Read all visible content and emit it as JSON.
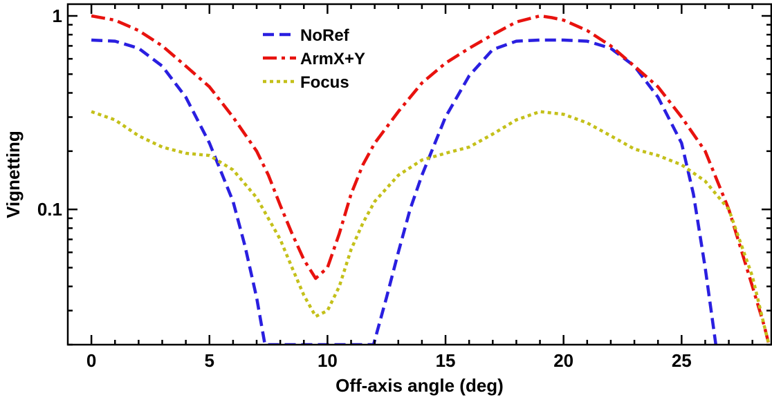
{
  "chart_data": {
    "type": "line",
    "title": "",
    "xlabel": "Off-axis angle (deg)",
    "ylabel": "Vignetting",
    "xlim": [
      -1,
      28.8
    ],
    "ylim": [
      0.02,
      1.15
    ],
    "yscale": "log",
    "x_ticks": [
      0,
      5,
      10,
      15,
      20,
      25
    ],
    "x_tick_labels": [
      "0",
      "5",
      "10",
      "15",
      "20",
      "25"
    ],
    "y_ticks": [
      0.1,
      1
    ],
    "y_tick_labels": [
      "0.1",
      "1"
    ],
    "grid": false,
    "legend_position": "top-center",
    "series": [
      {
        "name": "NoRef",
        "color": "#2a1fe0",
        "line_style": "dashed",
        "points": [
          [
            0,
            0.75
          ],
          [
            1,
            0.74
          ],
          [
            2,
            0.68
          ],
          [
            3,
            0.55
          ],
          [
            4,
            0.38
          ],
          [
            5,
            0.22
          ],
          [
            6,
            0.11
          ],
          [
            6.5,
            0.065
          ],
          [
            7,
            0.035
          ],
          [
            7.35,
            0.02
          ],
          [
            11.95,
            0.02
          ],
          [
            12.5,
            0.035
          ],
          [
            13,
            0.06
          ],
          [
            13.5,
            0.1
          ],
          [
            14,
            0.15
          ],
          [
            15,
            0.3
          ],
          [
            16,
            0.49
          ],
          [
            17,
            0.67
          ],
          [
            18,
            0.74
          ],
          [
            19,
            0.75
          ],
          [
            20,
            0.75
          ],
          [
            21,
            0.74
          ],
          [
            22,
            0.68
          ],
          [
            23,
            0.55
          ],
          [
            24,
            0.38
          ],
          [
            25,
            0.22
          ],
          [
            25.5,
            0.12
          ],
          [
            26,
            0.05
          ],
          [
            26.25,
            0.03
          ],
          [
            26.45,
            0.02
          ]
        ]
      },
      {
        "name": "ArmX+Y",
        "color": "#e8120e",
        "line_style": "dashdot",
        "points": [
          [
            0,
            1.0
          ],
          [
            1,
            0.95
          ],
          [
            2,
            0.84
          ],
          [
            3,
            0.7
          ],
          [
            4,
            0.55
          ],
          [
            5,
            0.43
          ],
          [
            6,
            0.3
          ],
          [
            7,
            0.2
          ],
          [
            7.5,
            0.15
          ],
          [
            8,
            0.105
          ],
          [
            8.5,
            0.075
          ],
          [
            9,
            0.055
          ],
          [
            9.5,
            0.044
          ],
          [
            10,
            0.05
          ],
          [
            10.5,
            0.075
          ],
          [
            11,
            0.12
          ],
          [
            11.5,
            0.17
          ],
          [
            12,
            0.22
          ],
          [
            13,
            0.32
          ],
          [
            14,
            0.45
          ],
          [
            15,
            0.57
          ],
          [
            16,
            0.68
          ],
          [
            17,
            0.8
          ],
          [
            18,
            0.93
          ],
          [
            19,
            1.0
          ],
          [
            19.5,
            0.98
          ],
          [
            20,
            0.95
          ],
          [
            21,
            0.84
          ],
          [
            22,
            0.7
          ],
          [
            23,
            0.55
          ],
          [
            24,
            0.43
          ],
          [
            25,
            0.3
          ],
          [
            26,
            0.2
          ],
          [
            27,
            0.1
          ],
          [
            28,
            0.04
          ],
          [
            28.5,
            0.025
          ],
          [
            28.7,
            0.02
          ]
        ]
      },
      {
        "name": "Focus",
        "color": "#c4c01a",
        "line_style": "dotted",
        "points": [
          [
            0,
            0.32
          ],
          [
            1,
            0.29
          ],
          [
            2,
            0.24
          ],
          [
            3,
            0.21
          ],
          [
            4,
            0.195
          ],
          [
            5,
            0.19
          ],
          [
            6,
            0.16
          ],
          [
            7,
            0.115
          ],
          [
            8,
            0.07
          ],
          [
            8.5,
            0.05
          ],
          [
            9,
            0.036
          ],
          [
            9.5,
            0.028
          ],
          [
            10,
            0.03
          ],
          [
            10.5,
            0.04
          ],
          [
            11,
            0.062
          ],
          [
            11.5,
            0.085
          ],
          [
            12,
            0.11
          ],
          [
            13,
            0.15
          ],
          [
            14,
            0.18
          ],
          [
            15,
            0.195
          ],
          [
            16,
            0.21
          ],
          [
            17,
            0.245
          ],
          [
            18,
            0.29
          ],
          [
            19,
            0.32
          ],
          [
            20,
            0.31
          ],
          [
            21,
            0.28
          ],
          [
            22,
            0.24
          ],
          [
            23,
            0.205
          ],
          [
            24,
            0.19
          ],
          [
            25,
            0.17
          ],
          [
            26,
            0.14
          ],
          [
            27,
            0.1
          ],
          [
            28,
            0.045
          ],
          [
            28.5,
            0.025
          ],
          [
            28.7,
            0.02
          ]
        ]
      }
    ]
  }
}
